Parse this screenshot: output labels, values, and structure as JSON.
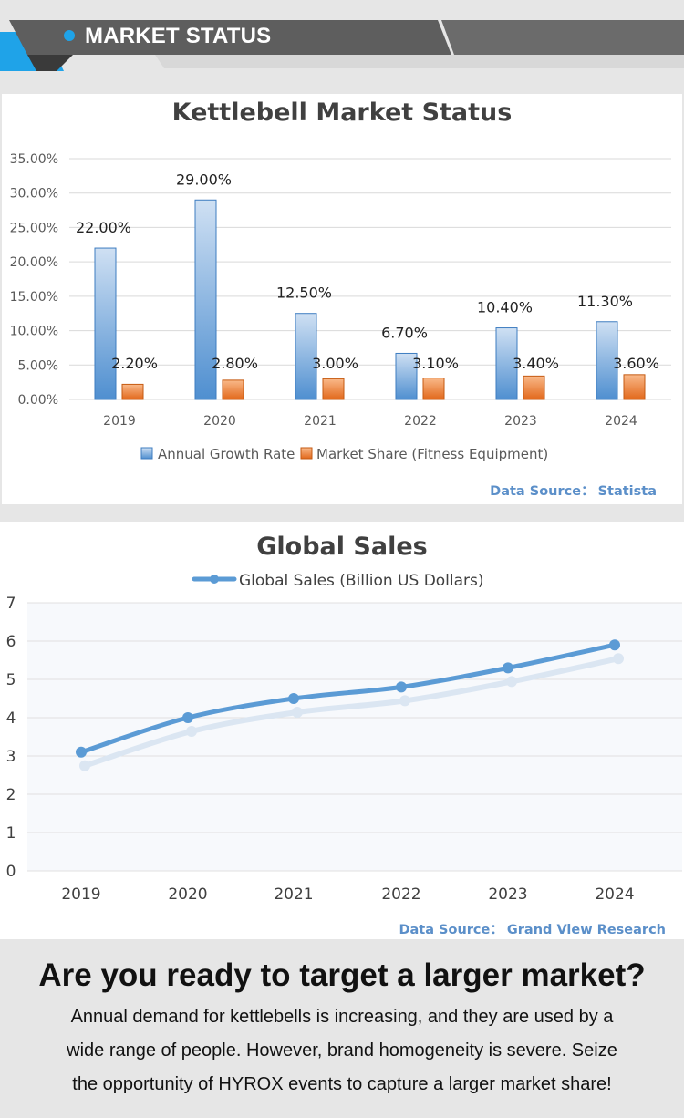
{
  "banner": {
    "title": "MARKET STATUS",
    "accent": "#1fa3e8"
  },
  "chart_data": [
    {
      "type": "bar",
      "title": "Kettlebell Market Status",
      "categories": [
        "2019",
        "2020",
        "2021",
        "2022",
        "2023",
        "2024"
      ],
      "series": [
        {
          "name": "Annual Growth Rate",
          "color": "#5b9bd5",
          "values": [
            22.0,
            29.0,
            12.5,
            6.7,
            10.4,
            11.3
          ],
          "labels": [
            "22.00%",
            "29.00%",
            "12.50%",
            "6.70%",
            "10.40%",
            "11.30%"
          ]
        },
        {
          "name": "Market Share (Fitness Equipment)",
          "color": "#ed7d31",
          "values": [
            2.2,
            2.8,
            3.0,
            3.1,
            3.4,
            3.6
          ],
          "labels": [
            "2.20%",
            "2.80%",
            "3.00%",
            "3.10%",
            "3.40%",
            "3.60%"
          ]
        }
      ],
      "ylim": [
        0,
        35
      ],
      "yticks": [
        "0.00%",
        "5.00%",
        "10.00%",
        "15.00%",
        "20.00%",
        "25.00%",
        "30.00%",
        "35.00%"
      ],
      "legend": "bottom",
      "grid": true
    },
    {
      "type": "line",
      "title": "Global Sales",
      "categories": [
        "2019",
        "2020",
        "2021",
        "2022",
        "2023",
        "2024"
      ],
      "series": [
        {
          "name": "Global Sales (Billion US Dollars)",
          "color": "#5b9bd5",
          "values": [
            3.1,
            4.0,
            4.5,
            4.8,
            5.3,
            5.9
          ]
        }
      ],
      "ylim": [
        0,
        7
      ],
      "yticks": [
        "0",
        "1",
        "2",
        "3",
        "4",
        "5",
        "6",
        "7"
      ],
      "legend": "top",
      "grid": true
    }
  ],
  "sources": {
    "chart1": {
      "label": "Data Source：",
      "name": "Statista"
    },
    "chart2": {
      "label": "Data Source：",
      "name": "Grand View Research"
    }
  },
  "bottom": {
    "headline": "Are you ready to target a larger market?",
    "lines": [
      "Annual demand for kettlebells is increasing, and they are used by a",
      "wide range of people. However, brand homogeneity is severe. Seize",
      "the opportunity of HYROX events to capture a larger market share!"
    ]
  }
}
